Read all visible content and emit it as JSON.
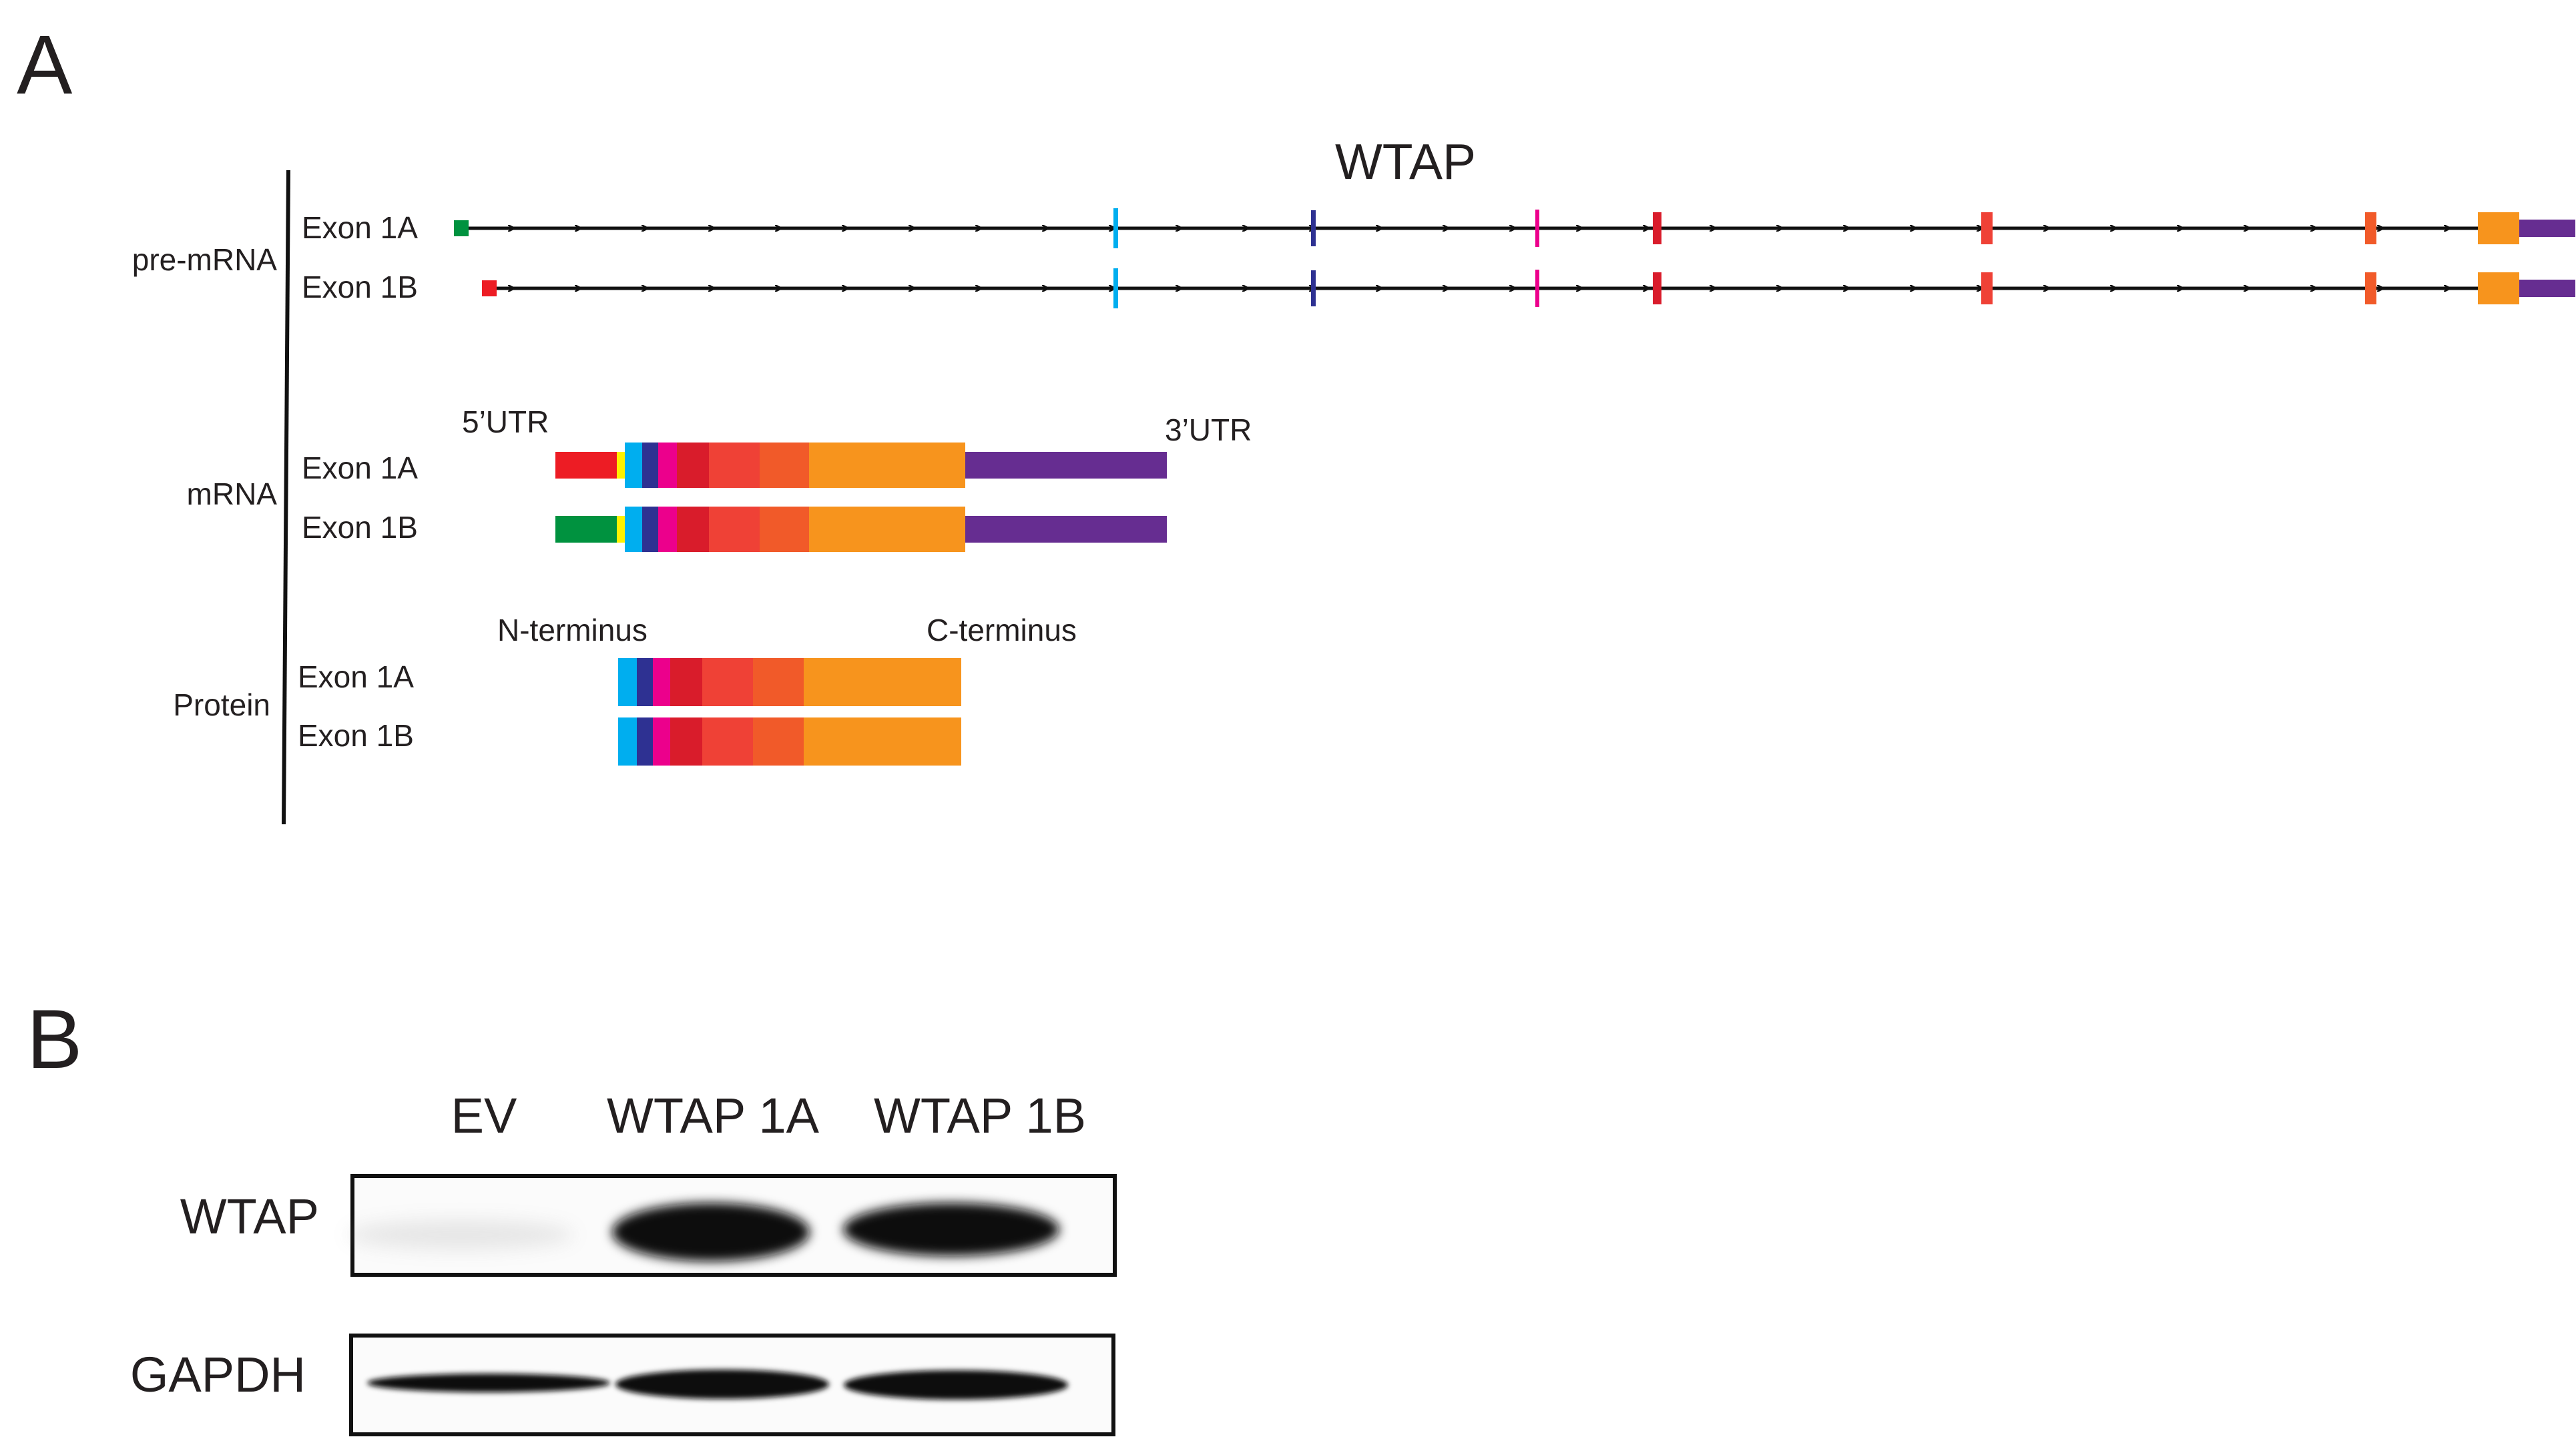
{
  "panel_a": {
    "label": "A",
    "gene_name": "WTAP",
    "groups": {
      "premrna": "pre-mRNA",
      "mrna": "mRNA",
      "protein": "Protein"
    },
    "rows": {
      "premrna_1a": "Exon 1A",
      "premrna_1b": "Exon 1B",
      "mrna_1a": "Exon 1A",
      "mrna_1b": "Exon 1B",
      "protein_1a": "Exon 1A",
      "protein_1b": "Exon 1B"
    },
    "utr5": "5’UTR",
    "utr3": "3’UTR",
    "n_terminus": "N-terminus",
    "c_terminus": "C-terminus",
    "colors": {
      "exon1a": "#ed1c24",
      "exon1b": "#00923f",
      "yellow": "#fff200",
      "cyan": "#00aeef",
      "navy": "#2e3192",
      "magenta": "#ec008c",
      "crimson": "#d91c2b",
      "red": "#ef4136",
      "orange_red": "#f15a29",
      "orange": "#f7941d",
      "purple": "#662d91"
    }
  },
  "panel_b": {
    "label": "B",
    "lanes": [
      "EV",
      "WTAP 1A",
      "WTAP 1B"
    ],
    "blots": [
      {
        "name": "WTAP",
        "signal": [
          "faint",
          "strong",
          "strong"
        ]
      },
      {
        "name": "GAPDH",
        "signal": [
          "moderate",
          "moderate",
          "moderate"
        ]
      }
    ]
  }
}
